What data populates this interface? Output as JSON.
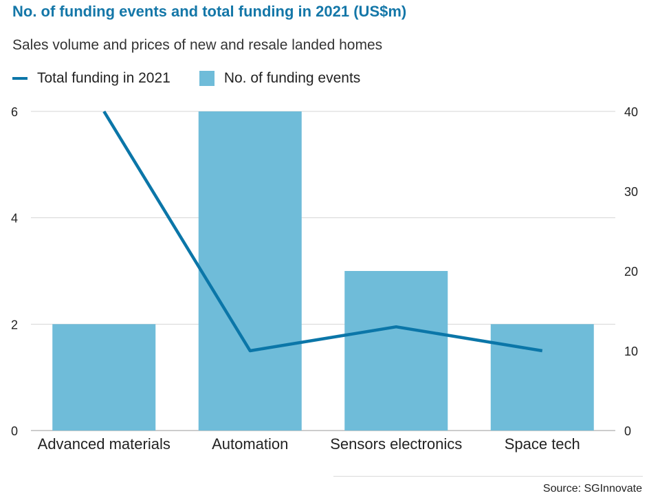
{
  "colors": {
    "title": "#1477a8",
    "bar": "#6fbcd9",
    "line": "#0b76a8",
    "grid": "#d4d4d4",
    "text": "#222222"
  },
  "title": "No. of funding events and total funding in 2021 (US$m)",
  "subtitle": "Sales volume and prices of new and resale landed homes",
  "legend": {
    "line_label": "Total funding in 2021",
    "bar_label": "No. of funding events"
  },
  "source": "Source: SGInnovate",
  "chart_data": {
    "type": "bar",
    "categories": [
      "Advanced materials",
      "Automation",
      "Sensors electronics",
      "Space tech"
    ],
    "series": [
      {
        "name": "No. of funding events",
        "kind": "bar",
        "axis": "left",
        "values": [
          2,
          6,
          3,
          2
        ]
      },
      {
        "name": "Total funding in 2021",
        "kind": "line",
        "axis": "right",
        "values": [
          40,
          10,
          13,
          10
        ]
      }
    ],
    "left_axis": {
      "ticks": [
        0,
        2,
        4,
        6
      ],
      "tick_labels": [
        "0",
        "2",
        "4",
        "6"
      ],
      "ylim": [
        0,
        6
      ]
    },
    "right_axis": {
      "ticks": [
        0,
        10,
        20,
        30,
        40
      ],
      "tick_labels": [
        "0",
        "10",
        "20",
        "30",
        "40"
      ],
      "ylim": [
        0,
        40
      ]
    },
    "grid": true
  }
}
